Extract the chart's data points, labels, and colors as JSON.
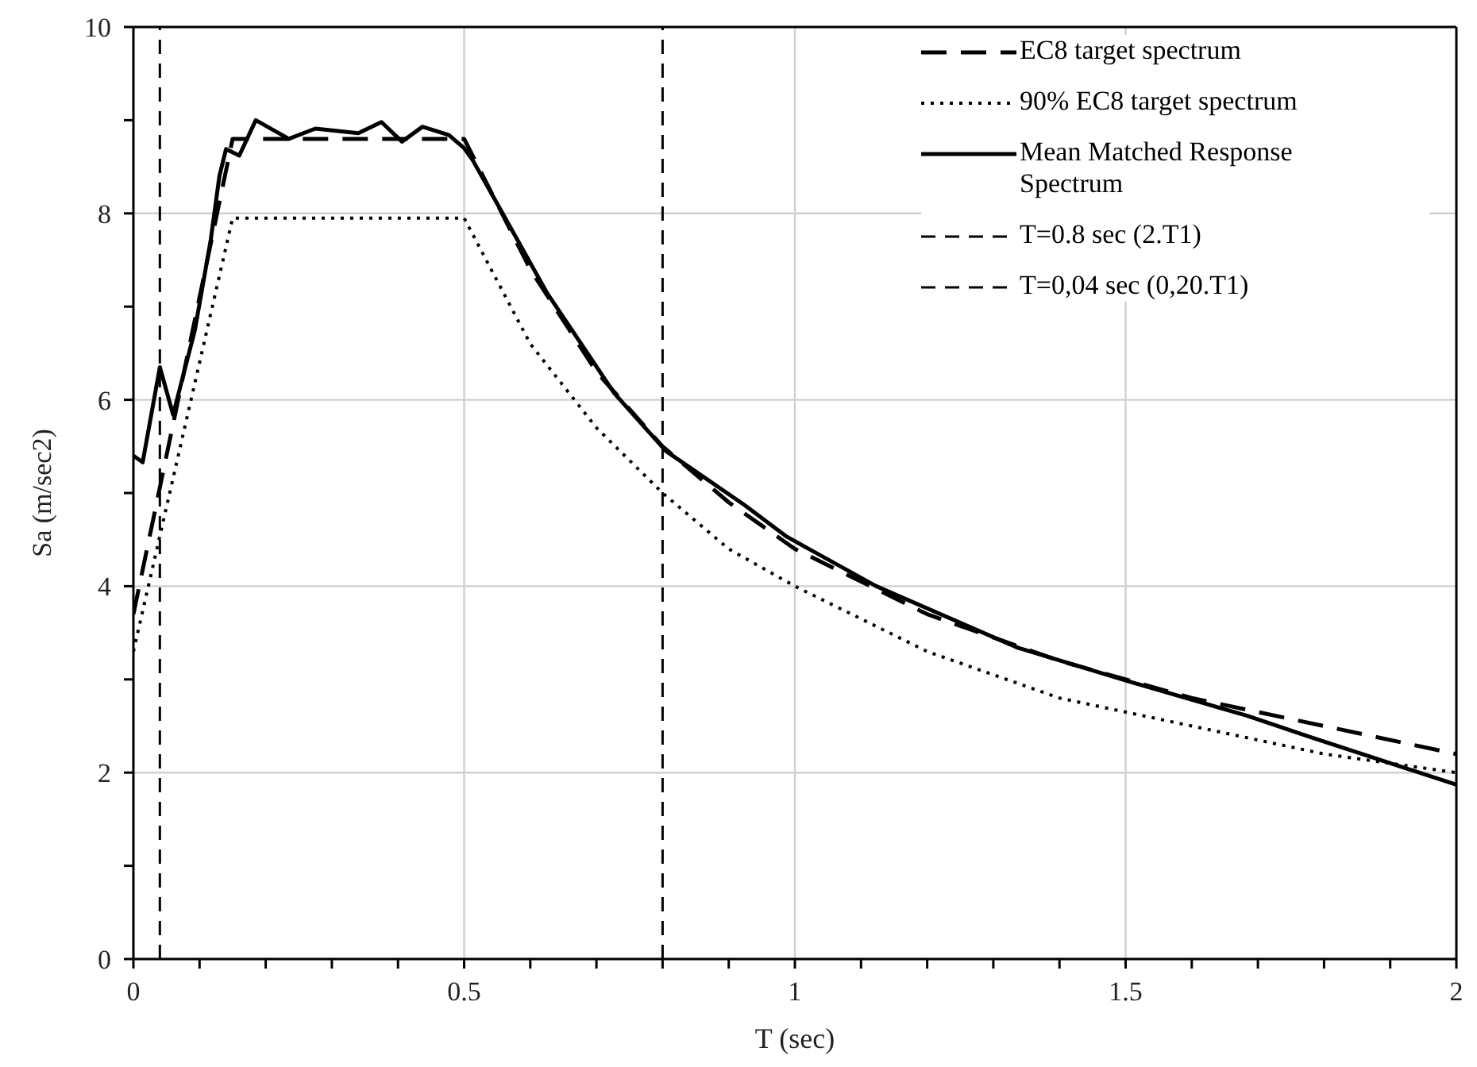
{
  "chart_data": {
    "type": "line",
    "xlabel": "T (sec)",
    "ylabel": "Sa (m/sec2)",
    "xlim": [
      0,
      2
    ],
    "ylim": [
      0,
      10
    ],
    "xticks": [
      0,
      {
        "value": 0.1,
        "label": null
      },
      {
        "value": 0.2,
        "label": null
      },
      {
        "value": 0.3,
        "label": null
      },
      {
        "value": 0.4,
        "label": null
      },
      {
        "value": 0.5,
        "label": "0.5"
      },
      {
        "value": 0.6,
        "label": null
      },
      {
        "value": 0.7,
        "label": null
      },
      {
        "value": 0.8,
        "label": null
      },
      {
        "value": 0.9,
        "label": null
      },
      1,
      {
        "value": 1.1,
        "label": null
      },
      {
        "value": 1.2,
        "label": null
      },
      {
        "value": 1.3,
        "label": null
      },
      {
        "value": 1.4,
        "label": null
      },
      1.5,
      {
        "value": 1.6,
        "label": null
      },
      {
        "value": 1.7,
        "label": null
      },
      {
        "value": 1.8,
        "label": null
      },
      {
        "value": 1.9,
        "label": null
      },
      2
    ],
    "yticks": [
      0,
      {
        "value": 1,
        "label": null
      },
      2,
      {
        "value": 3,
        "label": null
      },
      4,
      {
        "value": 5,
        "label": null
      },
      6,
      {
        "value": 7,
        "label": null
      },
      8,
      {
        "value": 9,
        "label": null
      },
      10
    ],
    "grid": true,
    "legend": "top right",
    "marker": "none",
    "series": [
      {
        "name": "EC8 target spectrum",
        "color": "#000000",
        "line_style": "longdash",
        "x": [
          0,
          0.15,
          0.5,
          0.6,
          0.7,
          0.8,
          0.9,
          1.0,
          1.2,
          1.4,
          1.6,
          1.8,
          2.0
        ],
        "values": [
          3.7,
          8.8,
          8.8,
          7.4,
          6.3,
          5.5,
          4.9,
          4.4,
          3.7,
          3.2,
          2.8,
          2.5,
          2.2
        ]
      },
      {
        "name": "90% EC8 target spectrum",
        "color": "#000000",
        "line_style": "dotted",
        "x": [
          0,
          0.15,
          0.5,
          0.6,
          0.7,
          0.8,
          0.9,
          1.0,
          1.2,
          1.4,
          1.6,
          1.8,
          2.0
        ],
        "values": [
          3.3,
          7.95,
          7.95,
          6.6,
          5.7,
          5.0,
          4.4,
          4.0,
          3.3,
          2.8,
          2.5,
          2.2,
          2.0
        ]
      },
      {
        "name": "Mean Matched Response Spectrum",
        "color": "#000000",
        "line_style": "solid",
        "x": [
          0,
          0.014,
          0.04,
          0.06,
          0.093,
          0.117,
          0.13,
          0.14,
          0.16,
          0.185,
          0.235,
          0.275,
          0.34,
          0.375,
          0.406,
          0.437,
          0.477,
          0.5,
          0.513,
          0.544,
          0.625,
          0.727,
          0.805,
          0.924,
          0.988,
          1.123,
          1.337,
          1.504,
          1.684,
          1.78,
          2.0
        ],
        "values": [
          5.4,
          5.33,
          6.35,
          5.84,
          6.75,
          7.72,
          8.4,
          8.69,
          8.62,
          9.0,
          8.8,
          8.91,
          8.86,
          8.98,
          8.77,
          8.93,
          8.84,
          8.7,
          8.57,
          8.18,
          7.15,
          6.07,
          5.45,
          4.87,
          4.53,
          4.0,
          3.34,
          2.98,
          2.61,
          2.38,
          1.87
        ]
      },
      {
        "name": "T=0.8 sec (2.T1)",
        "color": "#000000",
        "line_style": "dashed",
        "x": [
          0.8,
          0.8
        ],
        "values": [
          0,
          10
        ]
      },
      {
        "name": "T=0,04 sec (0,20.T1)",
        "color": "#000000",
        "line_style": "dashed",
        "x": [
          0.04,
          0.04
        ],
        "values": [
          0,
          10
        ]
      }
    ]
  }
}
